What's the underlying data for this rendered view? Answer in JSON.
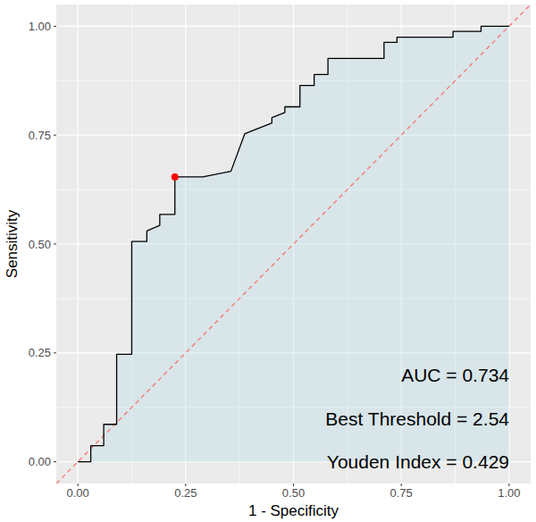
{
  "chart_data": {
    "type": "line",
    "x": [
      0,
      0.03,
      0.03,
      0.06,
      0.06,
      0.09,
      0.09,
      0.125,
      0.125,
      0.16,
      0.16,
      0.19,
      0.19,
      0.225,
      0.225,
      0.29,
      0.355,
      0.387,
      0.45,
      0.45,
      0.48,
      0.48,
      0.515,
      0.515,
      0.548,
      0.548,
      0.58,
      0.58,
      0.71,
      0.71,
      0.74,
      0.74,
      0.87,
      0.87,
      0.935,
      0.935,
      1
    ],
    "values": [
      0,
      0,
      0.037,
      0.037,
      0.086,
      0.086,
      0.247,
      0.247,
      0.506,
      0.506,
      0.53,
      0.543,
      0.568,
      0.568,
      0.654,
      0.654,
      0.667,
      0.753,
      0.778,
      0.79,
      0.802,
      0.815,
      0.815,
      0.864,
      0.864,
      0.889,
      0.889,
      0.926,
      0.926,
      0.963,
      0.963,
      0.975,
      0.975,
      0.988,
      0.988,
      1,
      1
    ],
    "color": "#000000",
    "xlabel": "1 - Specificity",
    "ylabel": "Sensitivity",
    "xlim": [
      -0.05,
      1.05
    ],
    "ylim": [
      -0.05,
      1.05
    ],
    "xticks": [
      {
        "value": 0,
        "label": "0.00"
      },
      {
        "value": 0.25,
        "label": "0.25"
      },
      {
        "value": 0.5,
        "label": "0.50"
      },
      {
        "value": 0.75,
        "label": "0.75"
      },
      {
        "value": 1,
        "label": "1.00"
      }
    ],
    "yticks": [
      {
        "value": 0,
        "label": "0.00"
      },
      {
        "value": 0.25,
        "label": "0.25"
      },
      {
        "value": 0.5,
        "label": "0.50"
      },
      {
        "value": 0.75,
        "label": "0.75"
      },
      {
        "value": 1,
        "label": "1.00"
      }
    ],
    "grid": true,
    "best_point": {
      "x": 0.225,
      "y": 0.654
    },
    "annotations": [
      "AUC = 0.734",
      "Best Threshold = 2.54",
      "Youden Index = 0.429"
    ]
  }
}
